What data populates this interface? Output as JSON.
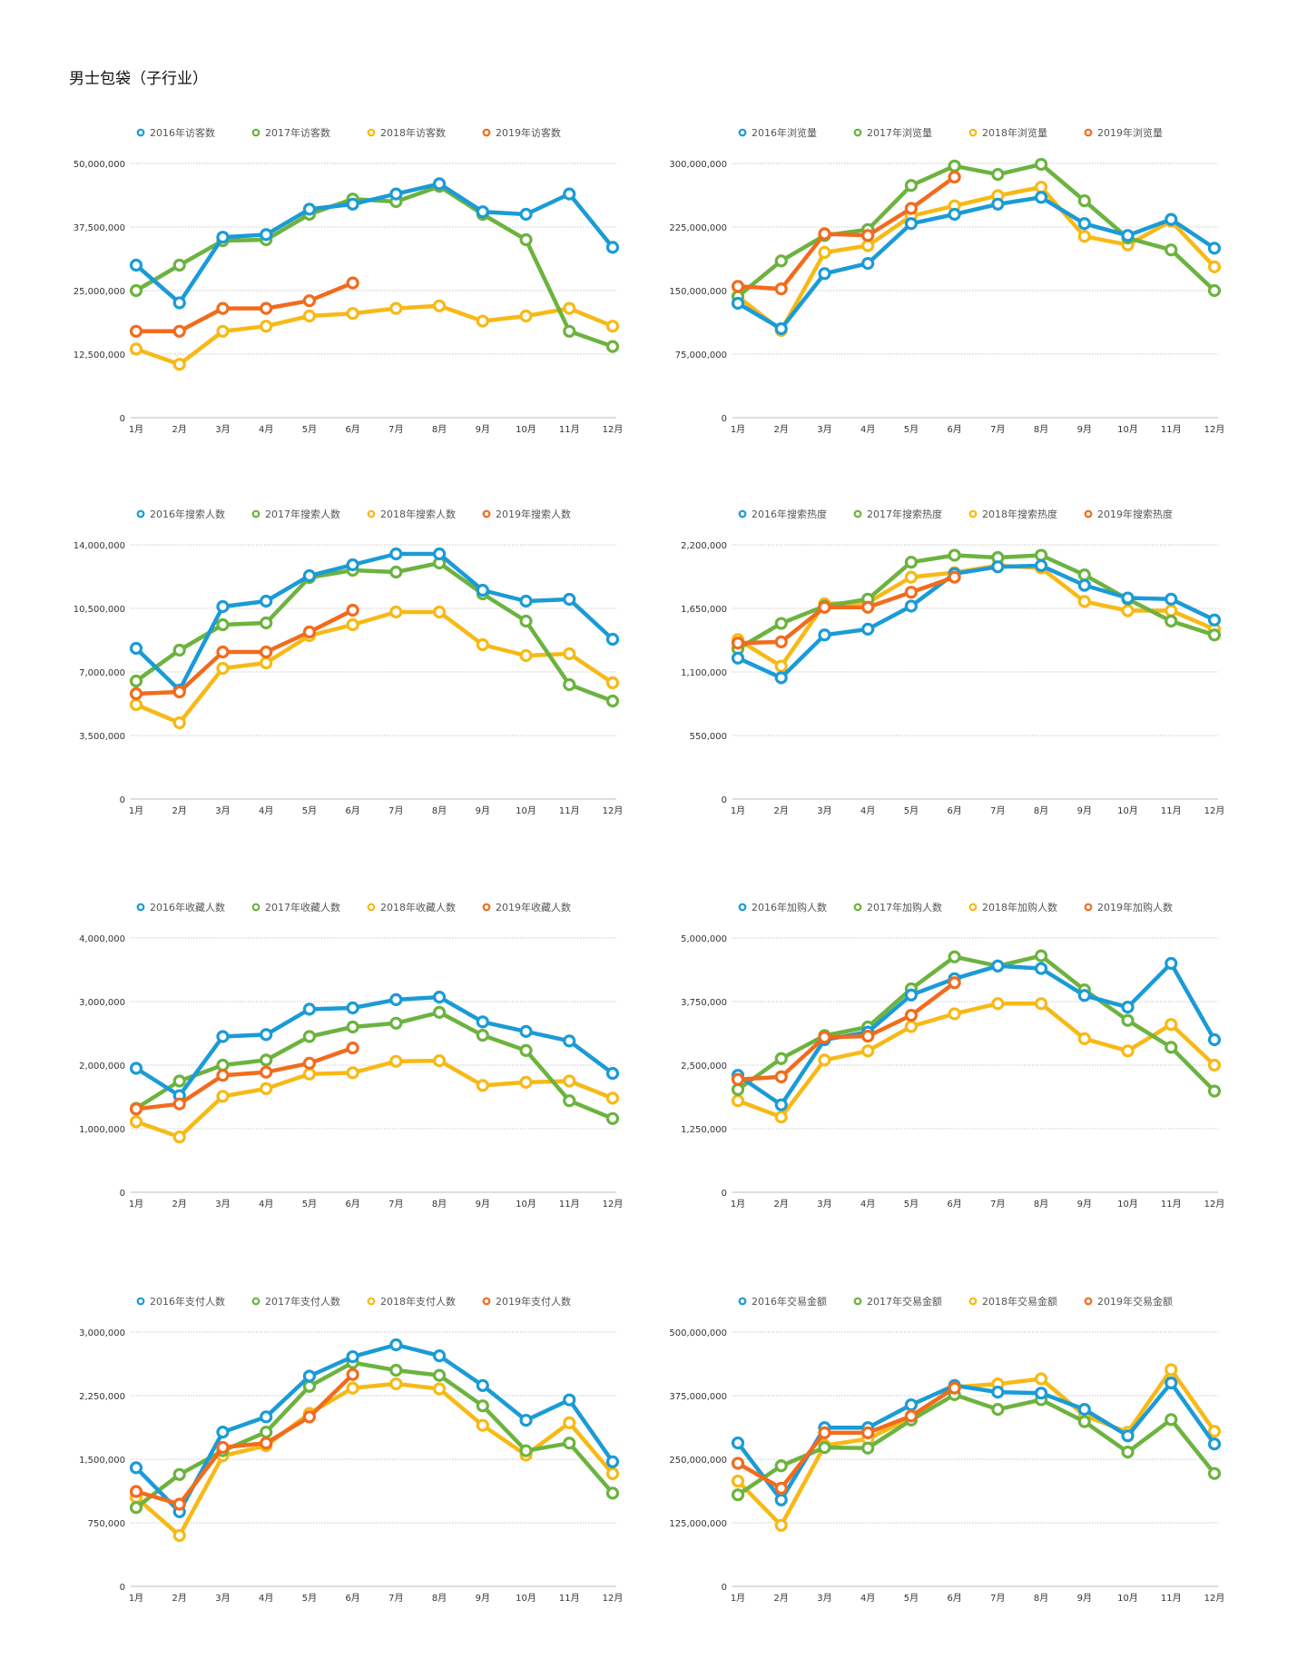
{
  "page_title": "男士包袋（子行业）",
  "colors": {
    "2016": "#1b9bd6",
    "2017": "#6cb33f",
    "2018": "#f7b916",
    "2019": "#f26b1d",
    "grid": "#c8c8c8",
    "axis": "#bdbdbd"
  },
  "chart_data": [
    {
      "type": "line",
      "metric": "访客数",
      "categories": [
        "1月",
        "2月",
        "3月",
        "4月",
        "5月",
        "6月",
        "7月",
        "8月",
        "9月",
        "10月",
        "11月",
        "12月"
      ],
      "yticks": [
        "0",
        "12,500,000",
        "25,000,000",
        "37,500,000",
        "50,000,000"
      ],
      "ylim": [
        0,
        50000000
      ],
      "series": [
        {
          "name": "2016年访客数",
          "year": "2016",
          "values": [
            30000000,
            22600000,
            35500000,
            36000000,
            41000000,
            42000000,
            44000000,
            46000000,
            40500000,
            40000000,
            44000000,
            33500000
          ]
        },
        {
          "name": "2017年访客数",
          "year": "2017",
          "values": [
            25000000,
            30000000,
            34800000,
            35000000,
            40000000,
            43000000,
            42500000,
            45500000,
            40000000,
            35000000,
            17000000,
            14000000
          ]
        },
        {
          "name": "2018年访客数",
          "year": "2018",
          "values": [
            13500000,
            10500000,
            17000000,
            18000000,
            20000000,
            20500000,
            21500000,
            22000000,
            19000000,
            20000000,
            21500000,
            18000000
          ]
        },
        {
          "name": "2019年访客数",
          "year": "2019",
          "values": [
            17000000,
            17000000,
            21500000,
            21500000,
            23000000,
            26500000,
            null,
            null,
            null,
            null,
            null,
            null
          ]
        }
      ]
    },
    {
      "type": "line",
      "metric": "浏览量",
      "categories": [
        "1月",
        "2月",
        "3月",
        "4月",
        "5月",
        "6月",
        "7月",
        "8月",
        "9月",
        "10月",
        "11月",
        "12月"
      ],
      "yticks": [
        "0",
        "75,000,000",
        "150,000,000",
        "225,000,000",
        "300,000,000"
      ],
      "ylim": [
        0,
        300000000
      ],
      "series": [
        {
          "name": "2016年浏览量",
          "year": "2016",
          "values": [
            135000000,
            105000000,
            170000000,
            182000000,
            229000000,
            240000000,
            252000000,
            260000000,
            229000000,
            215000000,
            234000000,
            200000000
          ]
        },
        {
          "name": "2017年浏览量",
          "year": "2017",
          "values": [
            143000000,
            185000000,
            215000000,
            222000000,
            274000000,
            297000000,
            287000000,
            299000000,
            256000000,
            212000000,
            198000000,
            150000000
          ]
        },
        {
          "name": "2018年浏览量",
          "year": "2018",
          "values": [
            143000000,
            103000000,
            195000000,
            203000000,
            238000000,
            250000000,
            262000000,
            272000000,
            214000000,
            204000000,
            232000000,
            178000000
          ]
        },
        {
          "name": "2019年浏览量",
          "year": "2019",
          "values": [
            155000000,
            152000000,
            217000000,
            215000000,
            247000000,
            284000000,
            null,
            null,
            null,
            null,
            null,
            null
          ]
        }
      ]
    },
    {
      "type": "line",
      "metric": "搜索人数",
      "categories": [
        "1月",
        "2月",
        "3月",
        "4月",
        "5月",
        "6月",
        "7月",
        "8月",
        "9月",
        "10月",
        "11月",
        "12月"
      ],
      "yticks": [
        "0",
        "3,500,000",
        "7,000,000",
        "10,500,000",
        "14,000,000"
      ],
      "ylim": [
        0,
        14000000
      ],
      "series": [
        {
          "name": "2016年搜索人数",
          "year": "2016",
          "values": [
            8300000,
            6000000,
            10600000,
            10900000,
            12300000,
            12900000,
            13500000,
            13500000,
            11500000,
            10900000,
            11000000,
            8800000
          ]
        },
        {
          "name": "2017年搜索人数",
          "year": "2017",
          "values": [
            6500000,
            8200000,
            9600000,
            9700000,
            12200000,
            12600000,
            12500000,
            13000000,
            11300000,
            9800000,
            6300000,
            5400000
          ]
        },
        {
          "name": "2018年搜索人数",
          "year": "2018",
          "values": [
            5200000,
            4200000,
            7200000,
            7500000,
            9000000,
            9600000,
            10300000,
            10300000,
            8500000,
            7900000,
            8000000,
            6400000
          ]
        },
        {
          "name": "2019年搜索人数",
          "year": "2019",
          "values": [
            5800000,
            5900000,
            8100000,
            8100000,
            9200000,
            10400000,
            null,
            null,
            null,
            null,
            null,
            null
          ]
        }
      ]
    },
    {
      "type": "line",
      "metric": "搜索热度",
      "categories": [
        "1月",
        "2月",
        "3月",
        "4月",
        "5月",
        "6月",
        "7月",
        "8月",
        "9月",
        "10月",
        "11月",
        "12月"
      ],
      "yticks": [
        "0",
        "550,000",
        "1,100,000",
        "1,650,000",
        "2,200,000"
      ],
      "ylim": [
        0,
        2200000
      ],
      "series": [
        {
          "name": "2016年搜索热度",
          "year": "2016",
          "values": [
            1220000,
            1050000,
            1420000,
            1470000,
            1670000,
            1950000,
            2010000,
            2020000,
            1850000,
            1740000,
            1730000,
            1550000
          ]
        },
        {
          "name": "2017年搜索热度",
          "year": "2017",
          "values": [
            1300000,
            1520000,
            1670000,
            1730000,
            2050000,
            2110000,
            2090000,
            2110000,
            1940000,
            1730000,
            1540000,
            1420000
          ]
        },
        {
          "name": "2018年搜索热度",
          "year": "2018",
          "values": [
            1380000,
            1150000,
            1690000,
            1700000,
            1920000,
            1960000,
            2020000,
            2000000,
            1710000,
            1630000,
            1630000,
            1470000
          ]
        },
        {
          "name": "2019年搜索热度",
          "year": "2019",
          "values": [
            1350000,
            1360000,
            1660000,
            1660000,
            1790000,
            1920000,
            null,
            null,
            null,
            null,
            null,
            null
          ]
        }
      ]
    },
    {
      "type": "line",
      "metric": "收藏人数",
      "categories": [
        "1月",
        "2月",
        "3月",
        "4月",
        "5月",
        "6月",
        "7月",
        "8月",
        "9月",
        "10月",
        "11月",
        "12月"
      ],
      "yticks": [
        "0",
        "1,000,000",
        "2,000,000",
        "3,000,000",
        "4,000,000"
      ],
      "ylim": [
        0,
        4000000
      ],
      "series": [
        {
          "name": "2016年收藏人数",
          "year": "2016",
          "values": [
            1950000,
            1520000,
            2450000,
            2480000,
            2880000,
            2900000,
            3030000,
            3070000,
            2680000,
            2530000,
            2380000,
            1870000
          ]
        },
        {
          "name": "2017年收藏人数",
          "year": "2017",
          "values": [
            1320000,
            1750000,
            2000000,
            2080000,
            2450000,
            2600000,
            2660000,
            2830000,
            2470000,
            2230000,
            1440000,
            1160000
          ]
        },
        {
          "name": "2018年收藏人数",
          "year": "2018",
          "values": [
            1110000,
            870000,
            1510000,
            1630000,
            1860000,
            1880000,
            2060000,
            2070000,
            1680000,
            1730000,
            1750000,
            1480000
          ]
        },
        {
          "name": "2019年收藏人数",
          "year": "2019",
          "values": [
            1310000,
            1390000,
            1840000,
            1890000,
            2030000,
            2270000,
            null,
            null,
            null,
            null,
            null,
            null
          ]
        }
      ]
    },
    {
      "type": "line",
      "metric": "加购人数",
      "categories": [
        "1月",
        "2月",
        "3月",
        "4月",
        "5月",
        "6月",
        "7月",
        "8月",
        "9月",
        "10月",
        "11月",
        "12月"
      ],
      "yticks": [
        "0",
        "1,250,000",
        "2,500,000",
        "3,750,000",
        "5,000,000"
      ],
      "ylim": [
        0,
        5000000
      ],
      "series": [
        {
          "name": "2016年加购人数",
          "year": "2016",
          "values": [
            2300000,
            1720000,
            3000000,
            3150000,
            3880000,
            4200000,
            4450000,
            4400000,
            3870000,
            3640000,
            4500000,
            3000000
          ]
        },
        {
          "name": "2017年加购人数",
          "year": "2017",
          "values": [
            2020000,
            2630000,
            3080000,
            3250000,
            4000000,
            4630000,
            4450000,
            4650000,
            3980000,
            3380000,
            2850000,
            1990000
          ]
        },
        {
          "name": "2018年加购人数",
          "year": "2018",
          "values": [
            1800000,
            1480000,
            2600000,
            2780000,
            3260000,
            3510000,
            3710000,
            3710000,
            3020000,
            2780000,
            3300000,
            2500000
          ]
        },
        {
          "name": "2019年加购人数",
          "year": "2019",
          "values": [
            2220000,
            2270000,
            3050000,
            3070000,
            3480000,
            4120000,
            null,
            null,
            null,
            null,
            null,
            null
          ]
        }
      ]
    },
    {
      "type": "line",
      "metric": "支付人数",
      "categories": [
        "1月",
        "2月",
        "3月",
        "4月",
        "5月",
        "6月",
        "7月",
        "8月",
        "9月",
        "10月",
        "11月",
        "12月"
      ],
      "yticks": [
        "0",
        "750,000",
        "1,500,000",
        "2,250,000",
        "3,000,000"
      ],
      "ylim": [
        0,
        3000000
      ],
      "series": [
        {
          "name": "2016年支付人数",
          "year": "2016",
          "values": [
            1400000,
            880000,
            1820000,
            2000000,
            2480000,
            2710000,
            2850000,
            2720000,
            2370000,
            1960000,
            2200000,
            1470000
          ]
        },
        {
          "name": "2017年支付人数",
          "year": "2017",
          "values": [
            930000,
            1320000,
            1600000,
            1820000,
            2360000,
            2640000,
            2550000,
            2490000,
            2130000,
            1600000,
            1690000,
            1100000
          ]
        },
        {
          "name": "2018年支付人数",
          "year": "2018",
          "values": [
            1050000,
            600000,
            1540000,
            1660000,
            2040000,
            2340000,
            2390000,
            2330000,
            1900000,
            1550000,
            1930000,
            1330000
          ]
        },
        {
          "name": "2019年支付人数",
          "year": "2019",
          "values": [
            1120000,
            970000,
            1640000,
            1690000,
            2000000,
            2500000,
            null,
            null,
            null,
            null,
            null,
            null
          ]
        }
      ]
    },
    {
      "type": "line",
      "metric": "交易金额",
      "categories": [
        "1月",
        "2月",
        "3月",
        "4月",
        "5月",
        "6月",
        "7月",
        "8月",
        "9月",
        "10月",
        "11月",
        "12月"
      ],
      "yticks": [
        "0",
        "125,000,000",
        "250,000,000",
        "375,000,000",
        "500,000,000"
      ],
      "ylim": [
        0,
        500000000
      ],
      "series": [
        {
          "name": "2016年交易金额",
          "year": "2016",
          "values": [
            282000000,
            170000000,
            312000000,
            312000000,
            357000000,
            395000000,
            382000000,
            380000000,
            348000000,
            296000000,
            400000000,
            280000000
          ]
        },
        {
          "name": "2017年交易金额",
          "year": "2017",
          "values": [
            180000000,
            237000000,
            273000000,
            272000000,
            327000000,
            377000000,
            348000000,
            367000000,
            324000000,
            264000000,
            328000000,
            222000000
          ]
        },
        {
          "name": "2018年交易金额",
          "year": "2018",
          "values": [
            207000000,
            120000000,
            277000000,
            290000000,
            332000000,
            392000000,
            398000000,
            408000000,
            336000000,
            303000000,
            426000000,
            305000000
          ]
        },
        {
          "name": "2019年交易金额",
          "year": "2019",
          "values": [
            242000000,
            193000000,
            302000000,
            302000000,
            335000000,
            390000000,
            null,
            null,
            null,
            null,
            null,
            null
          ]
        }
      ]
    }
  ]
}
